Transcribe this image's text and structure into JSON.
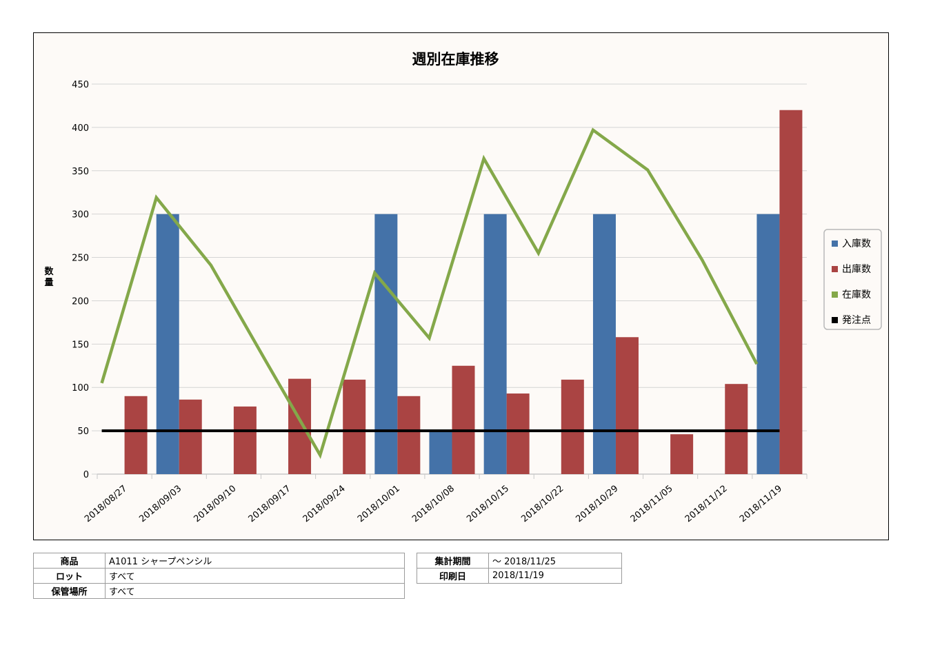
{
  "chart_data": {
    "type": "bar",
    "title": "週別在庫推移",
    "ylabel": "数量",
    "xlabel": "",
    "ylim": [
      0,
      450
    ],
    "yticks": [
      0,
      50,
      100,
      150,
      200,
      250,
      300,
      350,
      400,
      450
    ],
    "grid": true,
    "legend_position": "right",
    "categories": [
      "2018/08/27",
      "2018/09/03",
      "2018/09/10",
      "2018/09/17",
      "2018/09/24",
      "2018/10/01",
      "2018/10/08",
      "2018/10/15",
      "2018/10/22",
      "2018/10/29",
      "2018/11/05",
      "2018/11/12",
      "2018/11/19"
    ],
    "series": [
      {
        "name": "入庫数",
        "type": "bar",
        "color": "#4472a8",
        "values": [
          0,
          300,
          0,
          0,
          0,
          300,
          50,
          300,
          0,
          300,
          0,
          0,
          300
        ]
      },
      {
        "name": "出庫数",
        "type": "bar",
        "color": "#aa4443",
        "values": [
          90,
          86,
          78,
          110,
          109,
          90,
          125,
          93,
          109,
          158,
          46,
          104,
          420
        ]
      },
      {
        "name": "在庫数",
        "type": "line",
        "color": "#84a84a",
        "values": [
          105,
          319,
          241,
          131,
          22,
          232,
          157,
          364,
          255,
          397,
          351,
          247,
          127
        ]
      },
      {
        "name": "発注点",
        "type": "line",
        "color": "#000000",
        "values": [
          50,
          50,
          50,
          50,
          50,
          50,
          50,
          50,
          50,
          50,
          50,
          50,
          50
        ]
      }
    ]
  },
  "info": {
    "product_label": "商品",
    "product_value": "A1011 シャープペンシル",
    "lot_label": "ロット",
    "lot_value": "すべて",
    "location_label": "保管場所",
    "location_value": "すべて",
    "period_label": "集計期間",
    "period_value": "～ 2018/11/25",
    "print_date_label": "印刷日",
    "print_date_value": "2018/11/19"
  }
}
